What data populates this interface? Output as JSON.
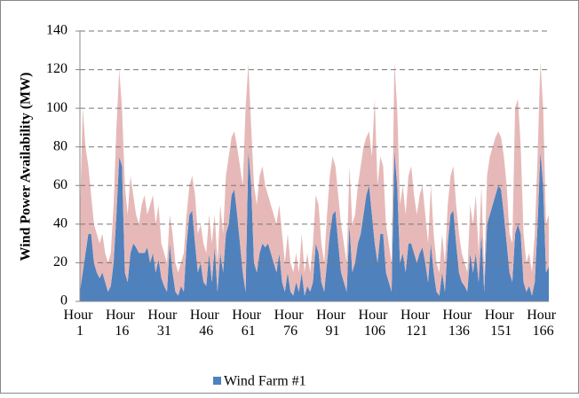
{
  "chart_data": {
    "type": "stacked-area",
    "y_label": "Wind Power Availability (MW)",
    "categories": [
      "Hour 1",
      null,
      null,
      null,
      null,
      null,
      null,
      null,
      null,
      null,
      null,
      null,
      null,
      null,
      null,
      "Hour 16",
      null,
      null,
      null,
      null,
      null,
      null,
      null,
      null,
      null,
      null,
      null,
      null,
      null,
      null,
      "Hour 31",
      null,
      null,
      null,
      null,
      null,
      null,
      null,
      null,
      null,
      null,
      null,
      null,
      null,
      null,
      "Hour 46",
      null,
      null,
      null,
      null,
      null,
      null,
      null,
      null,
      null,
      null,
      null,
      null,
      null,
      null,
      "Hour 61",
      null,
      null,
      null,
      null,
      null,
      null,
      null,
      null,
      null,
      null,
      null,
      null,
      null,
      null,
      "Hour 76",
      null,
      null,
      null,
      null,
      null,
      null,
      null,
      null,
      null,
      null,
      null,
      null,
      null,
      null,
      "Hour 91",
      null,
      null,
      null,
      null,
      null,
      null,
      null,
      null,
      null,
      null,
      null,
      null,
      null,
      null,
      "Hour 106",
      null,
      null,
      null,
      null,
      null,
      null,
      null,
      null,
      null,
      null,
      null,
      null,
      null,
      null,
      "Hour 121",
      null,
      null,
      null,
      null,
      null,
      null,
      null,
      null,
      null,
      null,
      null,
      null,
      null,
      null,
      "Hour 136",
      null,
      null,
      null,
      null,
      null,
      null,
      null,
      null,
      null,
      null,
      null,
      null,
      null,
      null,
      "Hour 151",
      null,
      null,
      null,
      null,
      null,
      null,
      null,
      null,
      null,
      null,
      null,
      null,
      null,
      null,
      "Hour 166",
      null,
      null
    ],
    "series": [
      {
        "name": "Wind Farm #1",
        "color": "#4f81bd",
        "values": [
          5,
          15,
          25,
          35,
          35,
          20,
          15,
          12,
          15,
          10,
          5,
          8,
          20,
          45,
          75,
          70,
          15,
          10,
          25,
          30,
          28,
          25,
          25,
          25,
          28,
          20,
          25,
          15,
          22,
          12,
          8,
          5,
          30,
          15,
          5,
          3,
          8,
          5,
          30,
          45,
          47,
          30,
          15,
          20,
          10,
          8,
          25,
          10,
          28,
          5,
          25,
          15,
          35,
          40,
          55,
          58,
          45,
          30,
          15,
          5,
          78,
          60,
          20,
          15,
          25,
          30,
          28,
          30,
          25,
          20,
          15,
          25,
          10,
          5,
          15,
          5,
          3,
          10,
          5,
          15,
          3,
          8,
          5,
          10,
          30,
          25,
          10,
          5,
          20,
          35,
          45,
          47,
          30,
          15,
          10,
          5,
          40,
          15,
          20,
          30,
          35,
          45,
          55,
          60,
          45,
          30,
          20,
          35,
          35,
          15,
          10,
          5,
          78,
          60,
          20,
          25,
          15,
          30,
          30,
          25,
          20,
          25,
          28,
          20,
          10,
          30,
          15,
          5,
          3,
          15,
          5,
          30,
          45,
          47,
          30,
          15,
          10,
          8,
          5,
          25,
          15,
          25,
          10,
          35,
          5,
          40,
          45,
          50,
          55,
          60,
          58,
          45,
          30,
          15,
          10,
          35,
          40,
          35,
          10,
          5,
          8,
          3,
          10,
          40,
          78,
          60,
          15,
          18
        ]
      },
      {
        "color": "#e6b9b8",
        "values": [
          40,
          85,
          55,
          35,
          20,
          20,
          20,
          18,
          20,
          15,
          15,
          17,
          30,
          45,
          45,
          30,
          45,
          35,
          40,
          25,
          17,
          15,
          25,
          30,
          17,
          30,
          30,
          25,
          28,
          18,
          17,
          15,
          15,
          20,
          15,
          12,
          12,
          20,
          15,
          15,
          18,
          25,
          20,
          20,
          20,
          17,
          20,
          20,
          17,
          15,
          25,
          20,
          30,
          35,
          30,
          30,
          35,
          40,
          45,
          95,
          45,
          30,
          40,
          35,
          40,
          40,
          32,
          25,
          25,
          25,
          25,
          25,
          25,
          15,
          20,
          15,
          12,
          15,
          10,
          20,
          12,
          17,
          10,
          20,
          25,
          25,
          20,
          15,
          25,
          30,
          30,
          23,
          25,
          25,
          20,
          15,
          30,
          25,
          25,
          30,
          35,
          35,
          30,
          28,
          30,
          75,
          40,
          40,
          35,
          25,
          20,
          15,
          46,
          40,
          30,
          35,
          30,
          35,
          40,
          30,
          25,
          30,
          32,
          25,
          20,
          30,
          20,
          15,
          12,
          20,
          15,
          20,
          20,
          23,
          20,
          20,
          15,
          12,
          10,
          25,
          25,
          30,
          15,
          25,
          10,
          25,
          30,
          30,
          30,
          28,
          27,
          30,
          30,
          20,
          20,
          65,
          65,
          45,
          25,
          15,
          17,
          12,
          25,
          35,
          46,
          40,
          25,
          27
        ]
      }
    ],
    "ylim": [
      0,
      140
    ],
    "yticks": [
      0,
      20,
      40,
      60,
      80,
      100,
      120,
      140
    ],
    "grid": true,
    "legend": "bottom"
  }
}
